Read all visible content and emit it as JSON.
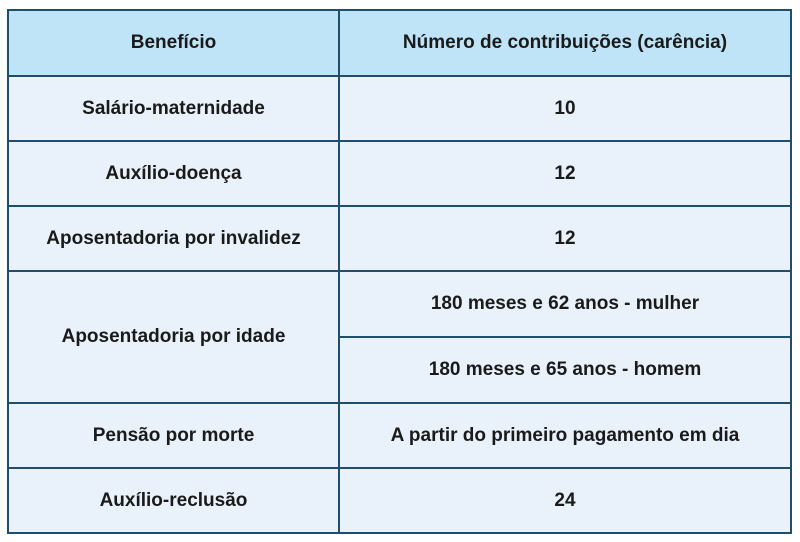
{
  "table": {
    "headers": [
      "Benefício",
      "Número de contribuições (carência)"
    ],
    "rows": [
      {
        "beneficio": "Salário-maternidade",
        "carencia": "10"
      },
      {
        "beneficio": "Auxílio-doença",
        "carencia": "12"
      },
      {
        "beneficio": "Aposentadoria por invalidez",
        "carencia": "12"
      },
      {
        "beneficio": "Aposentadoria por idade",
        "carencia": [
          "180 meses e 62 anos - mulher",
          "180 meses e 65 anos - homem"
        ]
      },
      {
        "beneficio": "Pensão por morte",
        "carencia": "A partir do primeiro pagamento em dia"
      },
      {
        "beneficio": "Auxílio-reclusão",
        "carencia": "24"
      }
    ]
  },
  "colors": {
    "header_bg": "#bfe3f7",
    "cell_bg": "#e9f2fb",
    "border": "#1f4d6d"
  }
}
